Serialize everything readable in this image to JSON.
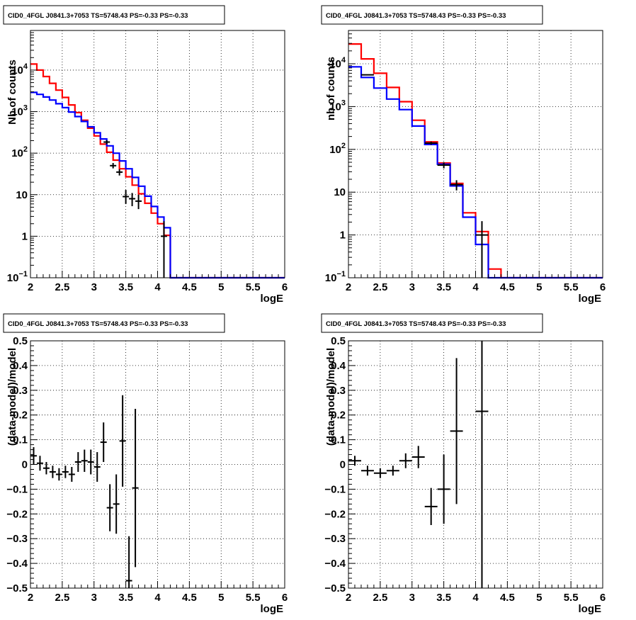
{
  "chart_data": [
    {
      "type": "line",
      "title": "CID0_4FGL J0841.3+7053 TS=5748.43 PS=-0.33 PS=-0.33",
      "xlabel": "logE",
      "ylabel": "Nb of counts",
      "xlim": [
        2,
        6
      ],
      "ylim": [
        0.1,
        90000
      ],
      "yscale": "log",
      "grid": true,
      "x_ticks": [
        "2",
        "2.5",
        "3",
        "3.5",
        "4",
        "4.5",
        "5",
        "5.5",
        "6"
      ],
      "y_ticks": [
        {
          "v": 0.1,
          "t": "10",
          "e": "−1"
        },
        {
          "v": 1,
          "t": "1"
        },
        {
          "v": 10,
          "t": "10"
        },
        {
          "v": 100,
          "t": "10",
          "e": "2"
        },
        {
          "v": 1000,
          "t": "10",
          "e": "3"
        },
        {
          "v": 10000,
          "t": "10",
          "e": "4"
        }
      ],
      "bin_edges": [
        2.0,
        2.1,
        2.2,
        2.3,
        2.4,
        2.5,
        2.6,
        2.7,
        2.8,
        2.9,
        3.0,
        3.1,
        3.2,
        3.3,
        3.4,
        3.5,
        3.6,
        3.7,
        3.8,
        3.9,
        4.0,
        4.1,
        4.2,
        4.3,
        4.4,
        4.5,
        4.6,
        4.7,
        4.8,
        4.9,
        5.0,
        5.1,
        5.2,
        5.3,
        5.4,
        5.5,
        5.6,
        5.7,
        5.8,
        5.9,
        6.0
      ],
      "series": [
        {
          "color": "#ff0000",
          "values": [
            14000,
            10000,
            7000,
            4800,
            3300,
            2200,
            1450,
            950,
            620,
            400,
            260,
            165,
            105,
            68,
            42,
            27,
            17,
            10.5,
            6.2,
            3.6,
            2.0,
            1.05,
            0.1,
            0.1,
            0.1,
            0.1,
            0.1,
            0.1,
            0.1,
            0.1,
            0.1,
            0.1,
            0.1,
            0.1,
            0.1,
            0.1,
            0.1,
            0.1,
            0.1,
            0.1
          ]
        },
        {
          "color": "#0000ff",
          "values": [
            2900,
            2600,
            2250,
            1900,
            1550,
            1250,
            980,
            760,
            580,
            430,
            310,
            220,
            150,
            100,
            65,
            42,
            26,
            16,
            9.2,
            5.2,
            2.9,
            1.6,
            0.1,
            0.1,
            0.1,
            0.1,
            0.1,
            0.1,
            0.1,
            0.1,
            0.1,
            0.1,
            0.1,
            0.1,
            0.1,
            0.1,
            0.1,
            0.1,
            0.1,
            0.1
          ]
        }
      ],
      "data_points": [
        {
          "x": 3.2,
          "y": 185,
          "lo": 165,
          "hi": 205
        },
        {
          "x": 3.3,
          "y": 50,
          "lo": 43,
          "hi": 58
        },
        {
          "x": 3.4,
          "y": 35,
          "lo": 29,
          "hi": 41
        },
        {
          "x": 3.5,
          "y": 9,
          "lo": 6,
          "hi": 13
        },
        {
          "x": 3.6,
          "y": 8,
          "lo": 5.3,
          "hi": 11
        },
        {
          "x": 3.7,
          "y": 7,
          "lo": 4.5,
          "hi": 10
        },
        {
          "x": 4.1,
          "y": 1,
          "lo": 0.1,
          "hi": 2.3
        }
      ]
    },
    {
      "type": "line",
      "title": "CID0_4FGL J0841.3+7053 TS=5748.43 PS=-0.33 PS=-0.33",
      "xlabel": "logE",
      "ylabel": "nb of counts",
      "xlim": [
        2,
        6
      ],
      "ylim": [
        0.1,
        60000
      ],
      "yscale": "log",
      "grid": true,
      "x_ticks": [
        "2",
        "2.5",
        "3",
        "3.5",
        "4",
        "4.5",
        "5",
        "5.5",
        "6"
      ],
      "y_ticks": [
        {
          "v": 0.1,
          "t": "10",
          "e": "−1"
        },
        {
          "v": 1,
          "t": "1"
        },
        {
          "v": 10,
          "t": "10"
        },
        {
          "v": 100,
          "t": "10",
          "e": "2"
        },
        {
          "v": 1000,
          "t": "10",
          "e": "3"
        },
        {
          "v": 10000,
          "t": "10",
          "e": "4"
        }
      ],
      "bin_edges": [
        2.0,
        2.2,
        2.4,
        2.6,
        2.8,
        3.0,
        3.2,
        3.4,
        3.6,
        3.8,
        4.0,
        4.2,
        4.4,
        4.6,
        4.8,
        5.0,
        5.2,
        5.4,
        5.6,
        5.8,
        6.0
      ],
      "series": [
        {
          "color": "#ff0000",
          "values": [
            29000,
            13000,
            6000,
            2800,
            1300,
            480,
            150,
            48,
            16,
            3.3,
            1.2,
            0.16,
            0.1,
            0.1,
            0.1,
            0.1,
            0.1,
            0.1,
            0.1,
            0.1
          ]
        },
        {
          "color": "#0000ff",
          "values": [
            8500,
            4800,
            2700,
            1500,
            850,
            350,
            130,
            45,
            14,
            2.6,
            0.6,
            0.1,
            0.1,
            0.1,
            0.1,
            0.1,
            0.1,
            0.1,
            0.1,
            0.1
          ]
        }
      ],
      "data_points": [
        {
          "x": 2.3,
          "y": 5500,
          "lo": 5400,
          "hi": 5600
        },
        {
          "x": 3.3,
          "y": 140,
          "lo": 128,
          "hi": 152
        },
        {
          "x": 3.5,
          "y": 43,
          "lo": 36,
          "hi": 50
        },
        {
          "x": 3.7,
          "y": 15,
          "lo": 11,
          "hi": 19
        },
        {
          "x": 4.1,
          "y": 1,
          "lo": 0.1,
          "hi": 2.1
        }
      ]
    },
    {
      "type": "scatter",
      "title": "CID0_4FGL J0841.3+7053 TS=5748.43 PS=-0.33 PS=-0.33",
      "xlabel": "logE",
      "ylabel": "(data-model)/model",
      "xlim": [
        2,
        6
      ],
      "ylim": [
        -0.5,
        0.5
      ],
      "grid": true,
      "x_ticks": [
        "2",
        "2.5",
        "3",
        "3.5",
        "4",
        "4.5",
        "5",
        "5.5",
        "6"
      ],
      "y_ticks": [
        "−0.5",
        "−0.4",
        "−0.3",
        "−0.2",
        "−0.1",
        "0",
        "0.1",
        "0.2",
        "0.3",
        "0.4",
        "0.5"
      ],
      "points": [
        {
          "x": 2.05,
          "y": 0.035,
          "err": 0.035,
          "xerr": 0.05
        },
        {
          "x": 2.15,
          "y": 0.005,
          "err": 0.03,
          "xerr": 0.05
        },
        {
          "x": 2.25,
          "y": -0.015,
          "err": 0.025,
          "xerr": 0.05
        },
        {
          "x": 2.35,
          "y": -0.03,
          "err": 0.025,
          "xerr": 0.05
        },
        {
          "x": 2.45,
          "y": -0.04,
          "err": 0.025,
          "xerr": 0.05
        },
        {
          "x": 2.55,
          "y": -0.03,
          "err": 0.025,
          "xerr": 0.05
        },
        {
          "x": 2.65,
          "y": -0.04,
          "err": 0.03,
          "xerr": 0.05
        },
        {
          "x": 2.75,
          "y": 0.01,
          "err": 0.04,
          "xerr": 0.05
        },
        {
          "x": 2.85,
          "y": 0.015,
          "err": 0.045,
          "xerr": 0.05
        },
        {
          "x": 2.95,
          "y": 0.01,
          "err": 0.05,
          "xerr": 0.05
        },
        {
          "x": 3.05,
          "y": -0.01,
          "err": 0.06,
          "xerr": 0.05
        },
        {
          "x": 3.15,
          "y": 0.09,
          "err": 0.08,
          "xerr": 0.05
        },
        {
          "x": 3.25,
          "y": -0.175,
          "err": 0.095,
          "xerr": 0.05
        },
        {
          "x": 3.35,
          "y": -0.16,
          "err": 0.12,
          "xerr": 0.05
        },
        {
          "x": 3.45,
          "y": 0.095,
          "err": 0.185,
          "xerr": 0.05
        },
        {
          "x": 3.55,
          "y": -0.47,
          "err": 0.18,
          "xerr": 0.05
        },
        {
          "x": 3.65,
          "y": -0.095,
          "err": 0.32,
          "xerr": 0.05
        }
      ]
    },
    {
      "type": "scatter",
      "title": "CID0_4FGL J0841.3+7053 TS=5748.43 PS=-0.33 PS=-0.33",
      "xlabel": "logE",
      "ylabel": "(data-model)/model",
      "xlim": [
        2,
        6
      ],
      "ylim": [
        -0.5,
        0.5
      ],
      "grid": true,
      "x_ticks": [
        "2",
        "2.5",
        "3",
        "3.5",
        "4",
        "4.5",
        "5",
        "5.5",
        "6"
      ],
      "y_ticks": [
        "−0.5",
        "−0.4",
        "−0.3",
        "−0.2",
        "−0.1",
        "0",
        "0.1",
        "0.2",
        "0.3",
        "0.4",
        "0.5"
      ],
      "points": [
        {
          "x": 2.1,
          "y": 0.015,
          "err": 0.02,
          "xerr": 0.1
        },
        {
          "x": 2.3,
          "y": -0.025,
          "err": 0.02,
          "xerr": 0.1
        },
        {
          "x": 2.5,
          "y": -0.035,
          "err": 0.02,
          "xerr": 0.1
        },
        {
          "x": 2.7,
          "y": -0.025,
          "err": 0.02,
          "xerr": 0.1
        },
        {
          "x": 2.9,
          "y": 0.015,
          "err": 0.03,
          "xerr": 0.1
        },
        {
          "x": 3.1,
          "y": 0.03,
          "err": 0.045,
          "xerr": 0.1
        },
        {
          "x": 3.3,
          "y": -0.17,
          "err": 0.075,
          "xerr": 0.1
        },
        {
          "x": 3.5,
          "y": -0.1,
          "err": 0.14,
          "xerr": 0.1
        },
        {
          "x": 3.7,
          "y": 0.135,
          "err": 0.295,
          "xerr": 0.1
        },
        {
          "x": 4.1,
          "y": 0.215,
          "err": 0.8,
          "xerr": 0.1
        }
      ]
    }
  ]
}
